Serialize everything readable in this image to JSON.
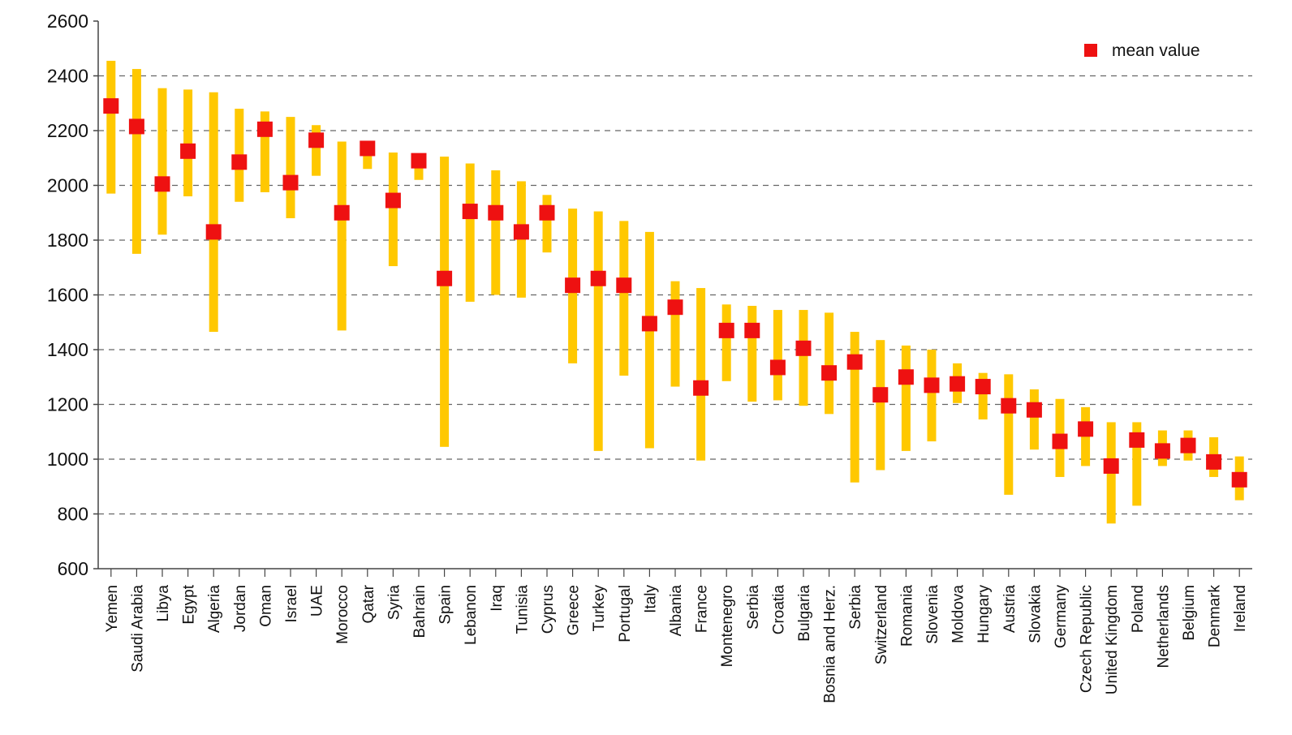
{
  "chart_data": {
    "type": "range_with_mean",
    "title": "",
    "xlabel": "",
    "ylabel": "",
    "ylim": [
      600,
      2600
    ],
    "yticks": [
      600,
      800,
      1000,
      1200,
      1400,
      1600,
      1800,
      2000,
      2200,
      2400,
      2600
    ],
    "grid": "horizontal dashed",
    "legend": {
      "position": "top-right",
      "entries": [
        {
          "label": "mean value",
          "color": "#ee1111",
          "marker": "square"
        }
      ]
    },
    "colors": {
      "range_bar": "#ffc800",
      "mean_marker": "#ee1111",
      "axis": "#444444",
      "grid": "#666666"
    },
    "categories": [
      "Yemen",
      "Saudi Arabia",
      "Libya",
      "Egypt",
      "Algeria",
      "Jordan",
      "Oman",
      "Israel",
      "UAE",
      "Morocco",
      "Qatar",
      "Syria",
      "Bahrain",
      "Spain",
      "Lebanon",
      "Iraq",
      "Tunisia",
      "Cyprus",
      "Greece",
      "Turkey",
      "Portugal",
      "Italy",
      "Albania",
      "France",
      "Montenegro",
      "Serbia",
      "Croatia",
      "Bulgaria",
      "Bosnia and Herz.",
      "Serbia",
      "Switzerland",
      "Romania",
      "Slovenia",
      "Moldova",
      "Hungary",
      "Austria",
      "Slovakia",
      "Germany",
      "Czech Republic",
      "United Kingdom",
      "Poland",
      "Netherlands",
      "Belgium",
      "Denmark",
      "Ireland"
    ],
    "series": [
      {
        "name": "",
        "role": "min",
        "values": [
          1970,
          1750,
          1820,
          1960,
          1465,
          1940,
          1975,
          1880,
          2035,
          1470,
          2060,
          1705,
          2020,
          1045,
          1575,
          1600,
          1590,
          1755,
          1350,
          1030,
          1305,
          1040,
          1265,
          995,
          1285,
          1210,
          1215,
          1195,
          1165,
          915,
          960,
          1030,
          1065,
          1205,
          1145,
          870,
          1035,
          935,
          975,
          765,
          830,
          975,
          995,
          935,
          850
        ]
      },
      {
        "name": "",
        "role": "max",
        "values": [
          2455,
          2425,
          2355,
          2350,
          2340,
          2280,
          2270,
          2250,
          2220,
          2160,
          2150,
          2120,
          2105,
          2105,
          2080,
          2055,
          2015,
          1965,
          1915,
          1905,
          1870,
          1830,
          1650,
          1625,
          1565,
          1560,
          1545,
          1545,
          1535,
          1465,
          1435,
          1415,
          1400,
          1350,
          1315,
          1310,
          1255,
          1220,
          1190,
          1135,
          1135,
          1105,
          1105,
          1080,
          1010
        ]
      },
      {
        "name": "mean value",
        "role": "mean",
        "values": [
          2290,
          2215,
          2005,
          2125,
          1830,
          2085,
          2205,
          2010,
          2165,
          1900,
          2135,
          1945,
          2090,
          1660,
          1905,
          1900,
          1830,
          1900,
          1635,
          1660,
          1635,
          1495,
          1555,
          1260,
          1470,
          1470,
          1335,
          1405,
          1315,
          1355,
          1235,
          1300,
          1270,
          1275,
          1265,
          1195,
          1180,
          1065,
          1110,
          975,
          1070,
          1030,
          1050,
          990,
          925
        ]
      }
    ]
  }
}
